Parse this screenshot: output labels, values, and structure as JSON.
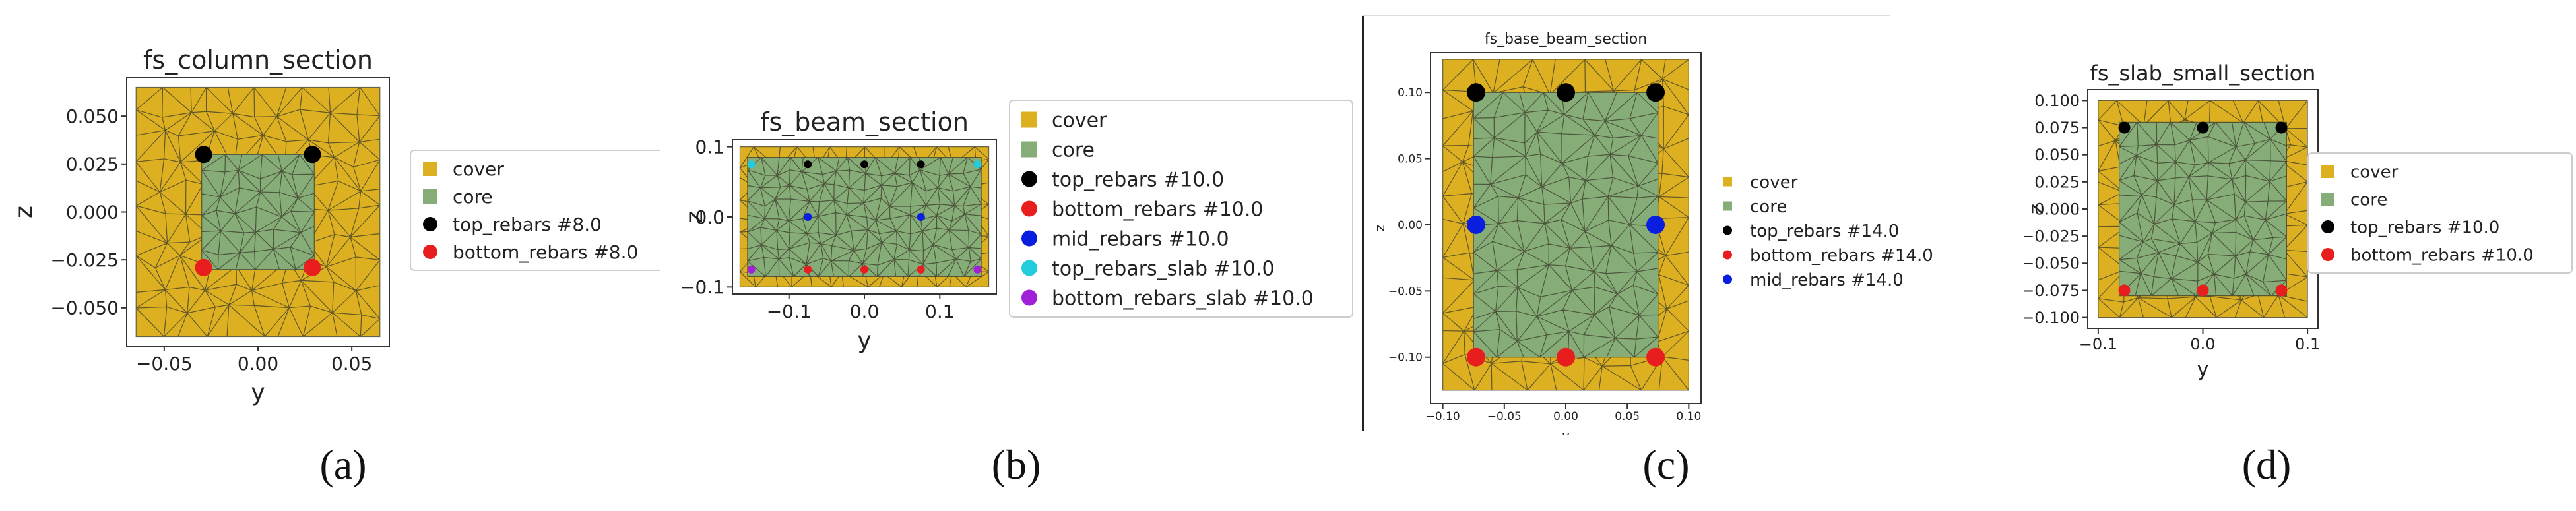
{
  "captions": [
    "(a)",
    "(b)",
    "(c)",
    "(d)"
  ],
  "colors": {
    "cover": "#dcb020",
    "core": "#86ac77",
    "top": "#000000",
    "bottom": "#e81e1e",
    "mid": "#0a1ee0",
    "top_slab": "#22ccdd",
    "bottom_slab": "#a020d8",
    "mesh": "#3a3a2a"
  },
  "chart_data": [
    {
      "type": "scatter",
      "title": "fs_column_section",
      "xlabel": "y",
      "ylabel": "z",
      "xlim": [
        -0.07,
        0.07
      ],
      "ylim": [
        -0.07,
        0.07
      ],
      "xticks": [
        -0.05,
        0.0,
        0.05
      ],
      "xtick_labels": [
        "−0.05",
        "0.00",
        "0.05"
      ],
      "yticks": [
        -0.05,
        -0.025,
        0.0,
        0.025,
        0.05
      ],
      "ytick_labels": [
        "−0.050",
        "−0.025",
        "0.000",
        "0.025",
        "0.050"
      ],
      "cover_rect": [
        -0.065,
        -0.065,
        0.065,
        0.065
      ],
      "core_rect": [
        -0.03,
        -0.03,
        0.03,
        0.03
      ],
      "legend_position": "outside-right",
      "series": [
        {
          "name": "cover",
          "kind": "patch",
          "color_key": "cover"
        },
        {
          "name": "core",
          "kind": "patch",
          "color_key": "core"
        },
        {
          "name": "top_rebars #8.0",
          "kind": "points",
          "color_key": "top",
          "x": [
            -0.029,
            0.029
          ],
          "y": [
            0.03,
            0.03
          ]
        },
        {
          "name": "bottom_rebars #8.0",
          "kind": "points",
          "color_key": "bottom",
          "x": [
            -0.029,
            0.029
          ],
          "y": [
            -0.029,
            -0.029
          ]
        }
      ]
    },
    {
      "type": "scatter",
      "title": "fs_beam_section",
      "xlabel": "y",
      "ylabel": "z",
      "xlim": [
        -0.175,
        0.175
      ],
      "ylim": [
        -0.11,
        0.11
      ],
      "xticks": [
        -0.1,
        0.0,
        0.1
      ],
      "xtick_labels": [
        "−0.1",
        "0.0",
        "0.1"
      ],
      "yticks": [
        -0.1,
        0.0,
        0.1
      ],
      "ytick_labels": [
        "−0.1",
        "0.0",
        "0.1"
      ],
      "cover_rect": [
        -0.165,
        -0.1,
        0.165,
        0.1
      ],
      "core_rect": [
        -0.155,
        -0.085,
        0.155,
        0.085
      ],
      "legend_position": "outside-right",
      "series": [
        {
          "name": "cover",
          "kind": "patch",
          "color_key": "cover"
        },
        {
          "name": "core",
          "kind": "patch",
          "color_key": "core"
        },
        {
          "name": "top_rebars #10.0",
          "kind": "points",
          "color_key": "top",
          "x": [
            -0.075,
            0.0,
            0.075
          ],
          "y": [
            0.075,
            0.075,
            0.075
          ]
        },
        {
          "name": "bottom_rebars #10.0",
          "kind": "points",
          "color_key": "bottom",
          "x": [
            -0.075,
            0.0,
            0.075
          ],
          "y": [
            -0.075,
            -0.075,
            -0.075
          ]
        },
        {
          "name": "mid_rebars #10.0",
          "kind": "points",
          "color_key": "mid",
          "x": [
            -0.075,
            0.075
          ],
          "y": [
            0.0,
            0.0
          ]
        },
        {
          "name": "top_rebars_slab #10.0",
          "kind": "points",
          "color_key": "top_slab",
          "x": [
            -0.15,
            0.15
          ],
          "y": [
            0.075,
            0.075
          ]
        },
        {
          "name": "bottom_rebars_slab #10.0",
          "kind": "points",
          "color_key": "bottom_slab",
          "x": [
            -0.15,
            0.15
          ],
          "y": [
            -0.075,
            -0.075
          ]
        }
      ]
    },
    {
      "type": "scatter",
      "title": "fs_base_beam_section",
      "xlabel": "y",
      "ylabel": "z",
      "xlim": [
        -0.11,
        0.11
      ],
      "ylim": [
        -0.135,
        0.13
      ],
      "xticks": [
        -0.1,
        -0.05,
        0.0,
        0.05,
        0.1
      ],
      "xtick_labels": [
        "−0.10",
        "−0.05",
        "0.00",
        "0.05",
        "0.10"
      ],
      "yticks": [
        -0.1,
        -0.05,
        0.0,
        0.05,
        0.1
      ],
      "ytick_labels": [
        "−0.10",
        "−0.05",
        "0.00",
        "0.05",
        "0.10"
      ],
      "cover_rect": [
        -0.1,
        -0.125,
        0.1,
        0.125
      ],
      "core_rect": [
        -0.075,
        -0.1,
        0.075,
        0.1
      ],
      "legend_position": "outside-right",
      "series": [
        {
          "name": "cover",
          "kind": "patch",
          "color_key": "cover"
        },
        {
          "name": "core",
          "kind": "patch",
          "color_key": "core"
        },
        {
          "name": "top_rebars #14.0",
          "kind": "points",
          "color_key": "top",
          "x": [
            -0.073,
            0.0,
            0.073
          ],
          "y": [
            0.1,
            0.1,
            0.1
          ]
        },
        {
          "name": "bottom_rebars #14.0",
          "kind": "points",
          "color_key": "bottom",
          "x": [
            -0.073,
            0.0,
            0.073
          ],
          "y": [
            -0.1,
            -0.1,
            -0.1
          ]
        },
        {
          "name": "mid_rebars #14.0",
          "kind": "points",
          "color_key": "mid",
          "x": [
            -0.073,
            0.073
          ],
          "y": [
            0.0,
            0.0
          ]
        }
      ]
    },
    {
      "type": "scatter",
      "title": "fs_slab_small_section",
      "xlabel": "y",
      "ylabel": "z",
      "xlim": [
        -0.11,
        0.11
      ],
      "ylim": [
        -0.11,
        0.11
      ],
      "xticks": [
        -0.1,
        0.0,
        0.1
      ],
      "xtick_labels": [
        "−0.1",
        "0.0",
        "0.1"
      ],
      "yticks": [
        -0.1,
        -0.075,
        -0.05,
        -0.025,
        0.0,
        0.025,
        0.05,
        0.075,
        0.1
      ],
      "ytick_labels": [
        "−0.100",
        "−0.075",
        "−0.050",
        "−0.025",
        "0.000",
        "0.025",
        "0.050",
        "0.075",
        "0.100"
      ],
      "cover_rect": [
        -0.1,
        -0.1,
        0.1,
        0.1
      ],
      "core_rect": [
        -0.08,
        -0.08,
        0.08,
        0.08
      ],
      "legend_position": "outside-right",
      "series": [
        {
          "name": "cover",
          "kind": "patch",
          "color_key": "cover"
        },
        {
          "name": "core",
          "kind": "patch",
          "color_key": "core"
        },
        {
          "name": "top_rebars #10.0",
          "kind": "points",
          "color_key": "top",
          "x": [
            -0.075,
            0.0,
            0.075
          ],
          "y": [
            0.075,
            0.075,
            0.075
          ]
        },
        {
          "name": "bottom_rebars #10.0",
          "kind": "points",
          "color_key": "bottom",
          "x": [
            -0.075,
            0.0,
            0.075
          ],
          "y": [
            -0.075,
            -0.075,
            -0.075
          ]
        }
      ]
    }
  ]
}
